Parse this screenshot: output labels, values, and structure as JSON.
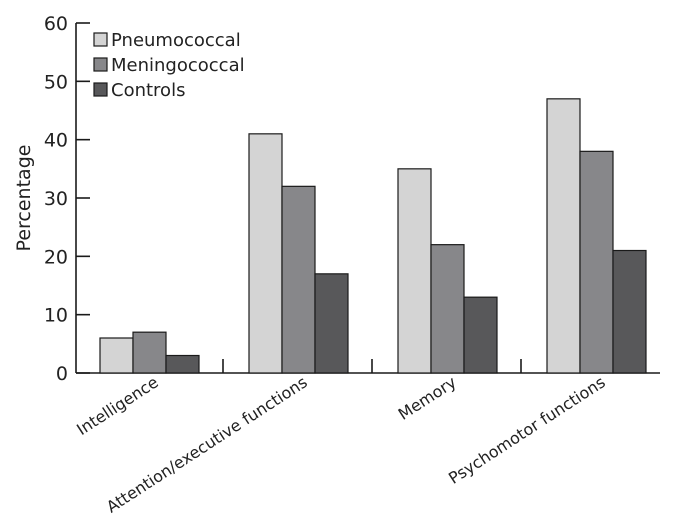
{
  "chart_data": {
    "type": "bar",
    "title": "",
    "xlabel": "",
    "ylabel": "Percentage",
    "ylim": [
      0,
      60
    ],
    "yticks": [
      0,
      10,
      20,
      30,
      40,
      50,
      60
    ],
    "categories": [
      "Intelligence",
      "Attention/executive functions",
      "Memory",
      "Psychomotor functions"
    ],
    "series": [
      {
        "name": "Pneumococcal",
        "values": [
          6,
          41,
          35,
          47
        ],
        "color": "#d4d4d4"
      },
      {
        "name": "Meningococcal",
        "values": [
          7,
          32,
          22,
          38
        ],
        "color": "#87878a"
      },
      {
        "name": "Controls",
        "values": [
          3,
          17,
          13,
          21
        ],
        "color": "#58585a"
      }
    ],
    "legend_position": "top-left",
    "grid": false
  }
}
